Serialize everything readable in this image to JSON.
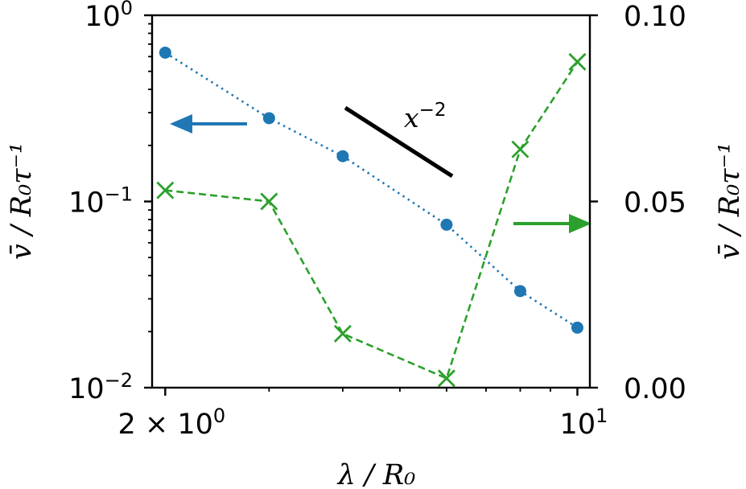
{
  "chart_data": {
    "type": "line",
    "title": "",
    "xlabel": "λ / R₀",
    "x_scale": "log",
    "xlim": [
      1.9,
      10.5
    ],
    "x_ticks": [
      {
        "value": 2,
        "base": "2 × 10",
        "exp": "0"
      },
      {
        "value": 10,
        "base": "10",
        "exp": "1"
      }
    ],
    "y_left": {
      "label": "v̄ / R₀τ⁻¹",
      "scale": "log",
      "ylim": [
        0.01,
        1
      ],
      "ticks": [
        {
          "value": 1,
          "base": "10",
          "exp": "0"
        },
        {
          "value": 0.1,
          "base": "10",
          "exp": "−1"
        },
        {
          "value": 0.01,
          "base": "10",
          "exp": "−2"
        }
      ]
    },
    "y_right": {
      "label": "v̄ / R₀τ⁻¹",
      "scale": "linear",
      "ylim": [
        0,
        0.1
      ],
      "ticks": [
        {
          "value": 0.1,
          "label": "0.10"
        },
        {
          "value": 0.05,
          "label": "0.05"
        },
        {
          "value": 0,
          "label": "0.00"
        }
      ]
    },
    "series": [
      {
        "axis": "left",
        "color": "#1f77b4",
        "linestyle": "dotted",
        "marker": "circle",
        "x": [
          2,
          3,
          4,
          6,
          8,
          10
        ],
        "y": [
          0.63,
          0.28,
          0.175,
          0.075,
          0.033,
          0.021
        ]
      },
      {
        "axis": "right",
        "color": "#2ca02c",
        "linestyle": "dashed",
        "marker": "x",
        "x": [
          2,
          3,
          4,
          6,
          8,
          10
        ],
        "y": [
          0.053,
          0.05,
          0.0145,
          0.0025,
          0.064,
          0.0875
        ]
      }
    ],
    "annotations": [
      {
        "type": "slope-line",
        "label": "x",
        "exp": "−2",
        "color": "#000000"
      },
      {
        "type": "arrow",
        "direction": "left",
        "color": "#1f77b4"
      },
      {
        "type": "arrow",
        "direction": "right",
        "color": "#2ca02c"
      }
    ],
    "grid": false
  }
}
